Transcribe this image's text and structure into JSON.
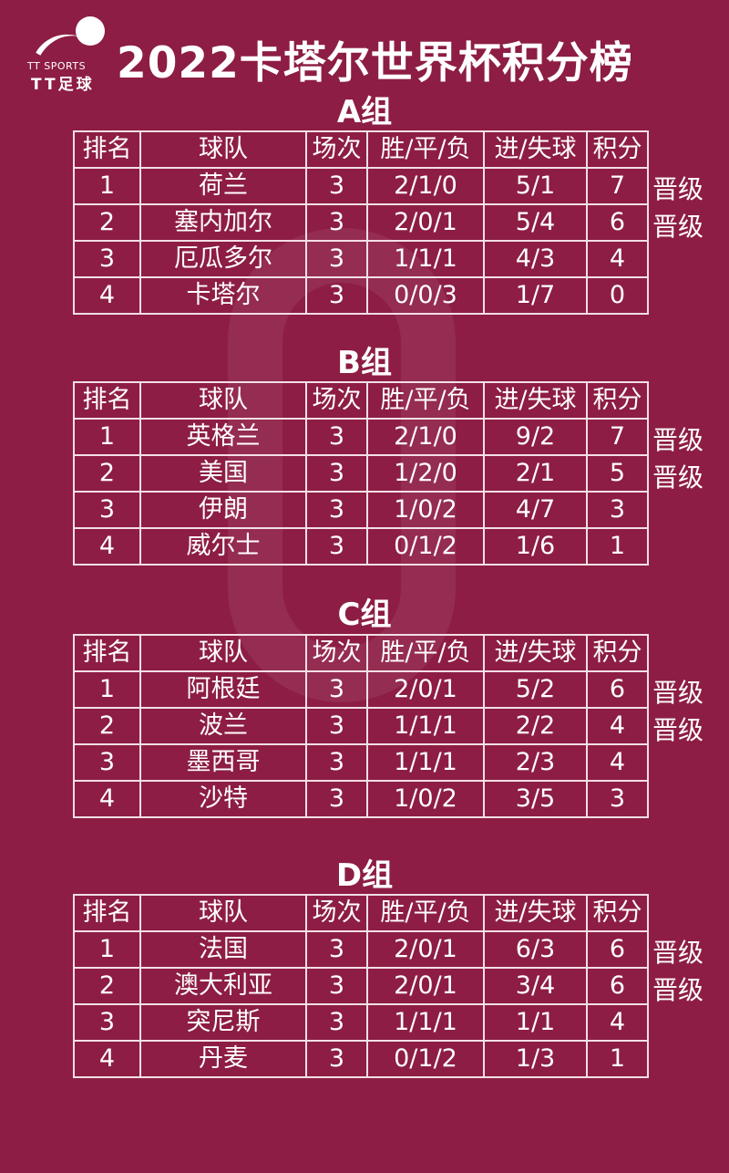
{
  "logo": {
    "text_en": "TT SPORTS",
    "text_cn": "TT足球"
  },
  "title": "2022卡塔尔世界杯积分榜",
  "headers": [
    "排名",
    "球队",
    "场次",
    "胜/平/负",
    "进/失球",
    "积分"
  ],
  "colors": {
    "background": "#8d1d44",
    "text": "#ffffff",
    "border": "#f2dfe5"
  },
  "groups": [
    {
      "name": "A组",
      "rows": [
        {
          "rank": "1",
          "team": "荷兰",
          "played": "3",
          "wdl": "2/1/0",
          "goals": "5/1",
          "points": "7",
          "status": "晋级"
        },
        {
          "rank": "2",
          "team": "塞内加尔",
          "played": "3",
          "wdl": "2/0/1",
          "goals": "5/4",
          "points": "6",
          "status": "晋级"
        },
        {
          "rank": "3",
          "team": "厄瓜多尔",
          "played": "3",
          "wdl": "1/1/1",
          "goals": "4/3",
          "points": "4",
          "status": ""
        },
        {
          "rank": "4",
          "team": "卡塔尔",
          "played": "3",
          "wdl": "0/0/3",
          "goals": "1/7",
          "points": "0",
          "status": ""
        }
      ]
    },
    {
      "name": "B组",
      "rows": [
        {
          "rank": "1",
          "team": "英格兰",
          "played": "3",
          "wdl": "2/1/0",
          "goals": "9/2",
          "points": "7",
          "status": "晋级"
        },
        {
          "rank": "2",
          "team": "美国",
          "played": "3",
          "wdl": "1/2/0",
          "goals": "2/1",
          "points": "5",
          "status": "晋级"
        },
        {
          "rank": "3",
          "team": "伊朗",
          "played": "3",
          "wdl": "1/0/2",
          "goals": "4/7",
          "points": "3",
          "status": ""
        },
        {
          "rank": "4",
          "team": "威尔士",
          "played": "3",
          "wdl": "0/1/2",
          "goals": "1/6",
          "points": "1",
          "status": ""
        }
      ]
    },
    {
      "name": "C组",
      "rows": [
        {
          "rank": "1",
          "team": "阿根廷",
          "played": "3",
          "wdl": "2/0/1",
          "goals": "5/2",
          "points": "6",
          "status": "晋级"
        },
        {
          "rank": "2",
          "team": "波兰",
          "played": "3",
          "wdl": "1/1/1",
          "goals": "2/2",
          "points": "4",
          "status": "晋级"
        },
        {
          "rank": "3",
          "team": "墨西哥",
          "played": "3",
          "wdl": "1/1/1",
          "goals": "2/3",
          "points": "4",
          "status": ""
        },
        {
          "rank": "4",
          "team": "沙特",
          "played": "3",
          "wdl": "1/0/2",
          "goals": "3/5",
          "points": "3",
          "status": ""
        }
      ]
    },
    {
      "name": "D组",
      "rows": [
        {
          "rank": "1",
          "team": "法国",
          "played": "3",
          "wdl": "2/0/1",
          "goals": "6/3",
          "points": "6",
          "status": "晋级"
        },
        {
          "rank": "2",
          "team": "澳大利亚",
          "played": "3",
          "wdl": "2/0/1",
          "goals": "3/4",
          "points": "6",
          "status": "晋级"
        },
        {
          "rank": "3",
          "team": "突尼斯",
          "played": "3",
          "wdl": "1/1/1",
          "goals": "1/1",
          "points": "4",
          "status": ""
        },
        {
          "rank": "4",
          "team": "丹麦",
          "played": "3",
          "wdl": "0/1/2",
          "goals": "1/3",
          "points": "1",
          "status": ""
        }
      ]
    }
  ]
}
